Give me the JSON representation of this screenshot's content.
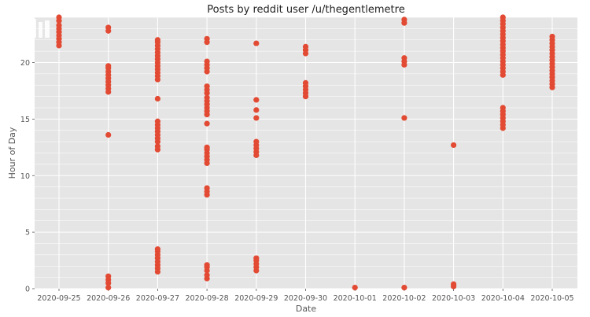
{
  "chart_data": {
    "type": "scatter",
    "title": "Posts by reddit user /u/thegentlemetre",
    "xlabel": "Date",
    "ylabel": "Hour of Day",
    "x_categories": [
      "2020-09-25",
      "2020-09-26",
      "2020-09-27",
      "2020-09-28",
      "2020-09-29",
      "2020-09-30",
      "2020-10-01",
      "2020-10-02",
      "2020-10-03",
      "2020-10-04",
      "2020-10-05"
    ],
    "y_ticks": [
      0,
      5,
      10,
      15,
      20
    ],
    "ylim": [
      0,
      24
    ],
    "grid": true,
    "marker_color": "#E24A33",
    "background_color": "#E5E5E5",
    "points_by_date": [
      {
        "date": "2020-09-25",
        "hours": [
          21.5,
          21.8,
          22.1,
          22.4,
          22.7,
          23.0,
          23.3,
          23.7,
          24.0
        ]
      },
      {
        "date": "2020-09-26",
        "hours": [
          0.1,
          0.5,
          0.8,
          1.1,
          13.6,
          17.4,
          17.7,
          18.0,
          18.3,
          18.6,
          18.9,
          19.2,
          19.5,
          19.7,
          22.8,
          23.1
        ]
      },
      {
        "date": "2020-09-27",
        "hours": [
          1.5,
          1.8,
          2.1,
          2.4,
          2.7,
          3.0,
          3.3,
          3.5,
          12.3,
          12.6,
          13.0,
          13.3,
          13.6,
          13.9,
          14.2,
          14.5,
          14.8,
          16.8,
          18.5,
          18.8,
          19.1,
          19.4,
          19.7,
          20.0,
          20.3,
          20.6,
          20.9,
          21.2,
          21.5,
          21.8,
          22.0
        ]
      },
      {
        "date": "2020-09-28",
        "hours": [
          0.9,
          1.2,
          1.6,
          1.9,
          2.1,
          8.3,
          8.6,
          8.9,
          11.1,
          11.4,
          11.7,
          12.0,
          12.3,
          12.5,
          14.6,
          15.4,
          15.7,
          16.0,
          16.3,
          16.6,
          16.9,
          17.3,
          17.6,
          17.9,
          19.2,
          19.5,
          19.8,
          20.1,
          21.8,
          22.1
        ]
      },
      {
        "date": "2020-09-29",
        "hours": [
          1.6,
          1.9,
          2.2,
          2.5,
          2.7,
          11.8,
          12.1,
          12.4,
          12.7,
          13.0,
          15.1,
          15.8,
          16.7,
          21.7
        ]
      },
      {
        "date": "2020-09-30",
        "hours": [
          17.0,
          17.3,
          17.6,
          17.9,
          18.2,
          20.8,
          21.1,
          21.4
        ]
      },
      {
        "date": "2020-10-01",
        "hours": [
          0.1
        ]
      },
      {
        "date": "2020-10-02",
        "hours": [
          0.1,
          15.1,
          19.8,
          20.1,
          20.4,
          23.5,
          23.8
        ]
      },
      {
        "date": "2020-10-03",
        "hours": [
          0.2,
          0.4,
          12.7
        ]
      },
      {
        "date": "2020-10-04",
        "hours": [
          14.2,
          14.5,
          14.8,
          15.1,
          15.4,
          15.7,
          16.0,
          18.9,
          19.2,
          19.5,
          19.8,
          20.1,
          20.4,
          20.7,
          21.0,
          21.3,
          21.6,
          21.9,
          22.2,
          22.5,
          22.8,
          23.1,
          23.4,
          23.7,
          24.0
        ]
      },
      {
        "date": "2020-10-05",
        "hours": [
          17.8,
          18.1,
          18.4,
          18.7,
          19.0,
          19.3,
          19.6,
          19.9,
          20.2,
          20.5,
          20.8,
          21.1,
          21.4,
          21.7,
          22.0,
          22.3
        ]
      }
    ]
  }
}
